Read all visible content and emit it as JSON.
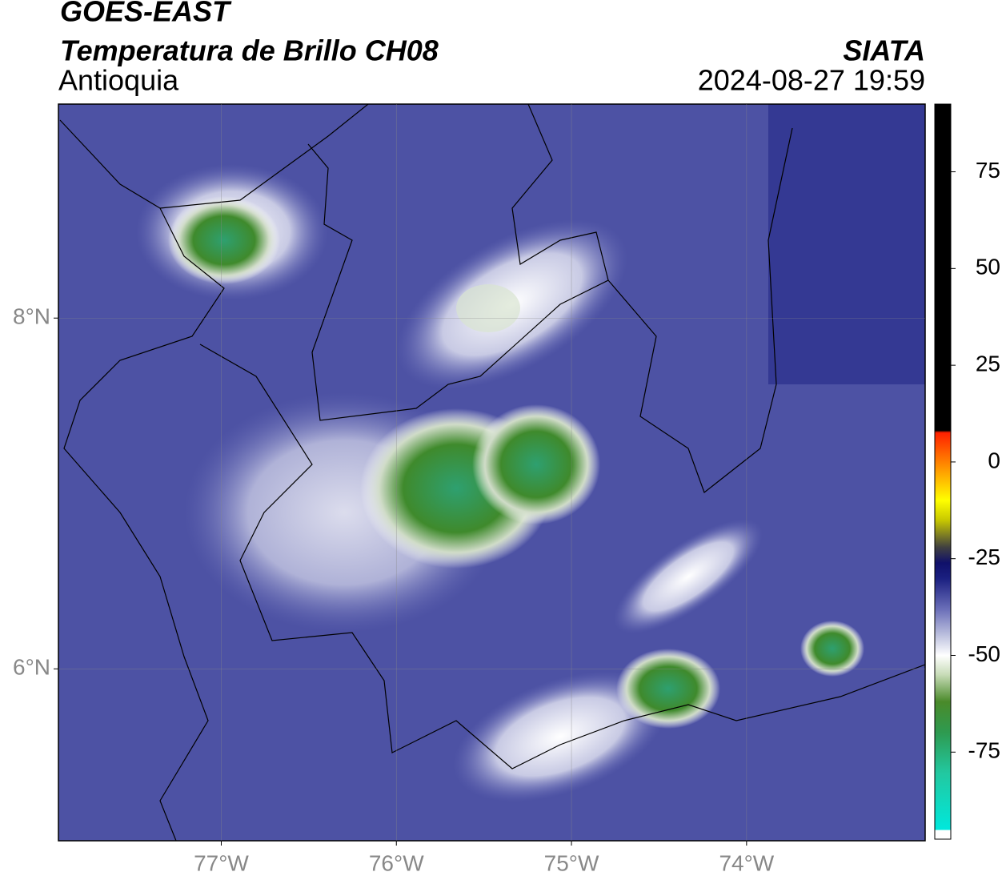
{
  "header": {
    "satellite": "GOES-EAST",
    "product": "Temperatura de Brillo CH08",
    "region": "Antioquia",
    "agency": "SIATA",
    "datetime": "2024-08-27 19:59"
  },
  "map": {
    "xlim": [
      -77.93,
      -72.98
    ],
    "ylim": [
      5.02,
      9.22
    ],
    "xticks": [
      {
        "value": -77,
        "label": "77°W"
      },
      {
        "value": -76,
        "label": "76°W"
      },
      {
        "value": -75,
        "label": "75°W"
      },
      {
        "value": -74,
        "label": "74°W"
      }
    ],
    "yticks": [
      {
        "value": 6,
        "label": "6°N"
      },
      {
        "value": 8,
        "label": "8°N"
      }
    ]
  },
  "colorbar": {
    "lim": [
      -97.5,
      92.5
    ],
    "ticks": [
      -75,
      -50,
      -25,
      0,
      25,
      50,
      75
    ]
  }
}
